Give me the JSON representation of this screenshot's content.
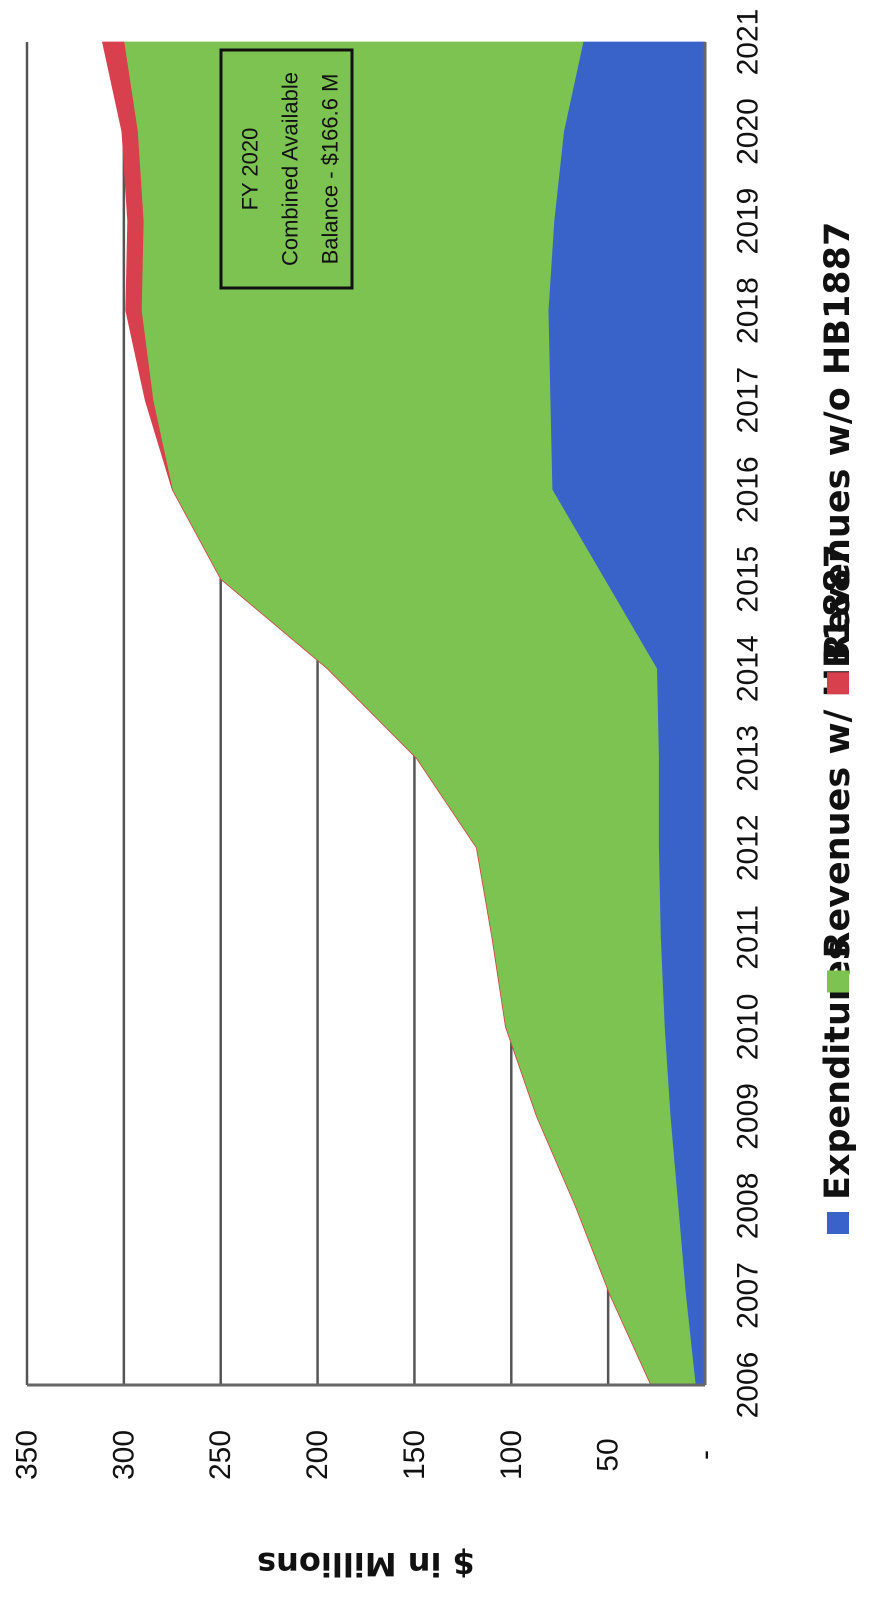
{
  "chart_data": {
    "type": "area",
    "stacked": true,
    "orientation": "rotated-90-clockwise",
    "x": [
      2006,
      2007,
      2008,
      2009,
      2010,
      2011,
      2012,
      2013,
      2014,
      2015,
      2016,
      2017,
      2018,
      2019,
      2020,
      2021
    ],
    "series": [
      {
        "name": "Expenditures",
        "color": "#3A63C9",
        "values": [
          5,
          10,
          14,
          18,
          21,
          23,
          24,
          24,
          25,
          52,
          79,
          80,
          81,
          78,
          73,
          63
        ]
      },
      {
        "name": "Revenues w/ HB1887",
        "color": "#7DC352",
        "values": [
          23,
          39,
          53,
          69,
          82,
          87,
          94,
          125,
          170,
          198,
          196,
          205,
          210,
          212,
          220,
          237
        ]
      },
      {
        "name": "Revenues w/o HB1887",
        "color": "#D8404D",
        "values": [
          0,
          0,
          0,
          0,
          0,
          0,
          0,
          0,
          0,
          0,
          0,
          4,
          8,
          8,
          8,
          11
        ]
      }
    ],
    "ylabel": "$ in Millions",
    "ylim": [
      0,
      350
    ],
    "yticks": [
      {
        "value": 0,
        "label": "-"
      },
      {
        "value": 50,
        "label": "50"
      },
      {
        "value": 100,
        "label": "100"
      },
      {
        "value": 150,
        "label": "150"
      },
      {
        "value": 200,
        "label": "200"
      },
      {
        "value": 250,
        "label": "250"
      },
      {
        "value": 300,
        "label": "300"
      },
      {
        "value": 350,
        "label": "350"
      }
    ],
    "grid": true,
    "legend": "bottom",
    "annotation": {
      "lines": [
        "FY 2020",
        "Combined Available",
        "Balance - $166.6 M"
      ]
    }
  }
}
